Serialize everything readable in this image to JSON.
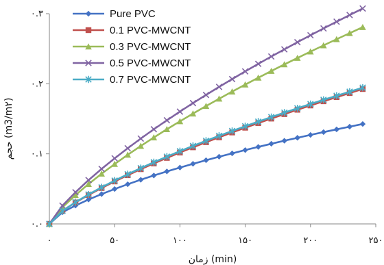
{
  "chart_data": {
    "type": "line",
    "xlabel": "زمان (min)",
    "ylabel": "حجم (m3/m۲)",
    "xlim": [
      0,
      250
    ],
    "ylim": [
      0,
      0.3
    ],
    "x_ticks": [
      0,
      50,
      100,
      150,
      200,
      250
    ],
    "x_tick_labels": [
      "۰",
      "۵۰",
      "۱۰۰",
      "۱۵۰",
      "۲۰۰",
      "۲۵۰"
    ],
    "y_ticks": [
      0,
      0.1,
      0.2,
      0.3
    ],
    "y_tick_labels": [
      "۰.۰",
      "۰.۱",
      "۰.۲",
      "۰.۳"
    ],
    "grid": false,
    "legend_position": "top-left",
    "x": [
      0,
      10,
      20,
      30,
      40,
      50,
      60,
      70,
      80,
      90,
      100,
      110,
      120,
      130,
      140,
      150,
      160,
      170,
      180,
      190,
      200,
      210,
      220,
      230,
      240
    ],
    "series": [
      {
        "name": "Pure PVC",
        "color": "#4472C4",
        "marker": "diamond",
        "values": [
          0,
          0.0166,
          0.0262,
          0.0348,
          0.0426,
          0.0498,
          0.0566,
          0.063,
          0.0691,
          0.0749,
          0.0804,
          0.0858,
          0.0909,
          0.0959,
          0.1007,
          0.1054,
          0.1099,
          0.1144,
          0.1187,
          0.1229,
          0.127,
          0.131,
          0.1349,
          0.1388,
          0.1426
        ]
      },
      {
        "name": "0.1 PVC-MWCNT",
        "color": "#C0504D",
        "marker": "square",
        "values": [
          0,
          0.0189,
          0.0306,
          0.0413,
          0.0512,
          0.0606,
          0.0695,
          0.0781,
          0.0863,
          0.0942,
          0.1019,
          0.1093,
          0.1166,
          0.1236,
          0.1305,
          0.1373,
          0.1439,
          0.1503,
          0.1567,
          0.1629,
          0.169,
          0.175,
          0.1809,
          0.1867,
          0.1925
        ]
      },
      {
        "name": "0.3 PVC-MWCNT",
        "color": "#9BBB59",
        "marker": "triangle",
        "values": [
          0,
          0.0236,
          0.0411,
          0.0569,
          0.0716,
          0.0854,
          0.0986,
          0.1112,
          0.1233,
          0.1351,
          0.1464,
          0.1574,
          0.1682,
          0.1786,
          0.1888,
          0.1988,
          0.2086,
          0.2182,
          0.2276,
          0.2368,
          0.2459,
          0.2548,
          0.2636,
          0.2722,
          0.2808
        ]
      },
      {
        "name": "0.5 PVC-MWCNT",
        "color": "#8064A2",
        "marker": "x",
        "values": [
          0,
          0.0261,
          0.0452,
          0.0625,
          0.0785,
          0.0936,
          0.108,
          0.1218,
          0.1351,
          0.1479,
          0.1603,
          0.1724,
          0.1841,
          0.1956,
          0.2067,
          0.2177,
          0.2284,
          0.2389,
          0.2491,
          0.2593,
          0.2692,
          0.279,
          0.2886,
          0.2981,
          0.3074
        ]
      },
      {
        "name": "0.7 PVC-MWCNT",
        "color": "#4BACC6",
        "marker": "star",
        "values": [
          0,
          0.0184,
          0.0309,
          0.042,
          0.0522,
          0.0618,
          0.0709,
          0.0796,
          0.088,
          0.096,
          0.1038,
          0.1113,
          0.1186,
          0.1257,
          0.1326,
          0.1394,
          0.146,
          0.1525,
          0.1588,
          0.165,
          0.1711,
          0.1771,
          0.1829,
          0.1887,
          0.1944
        ]
      }
    ]
  }
}
